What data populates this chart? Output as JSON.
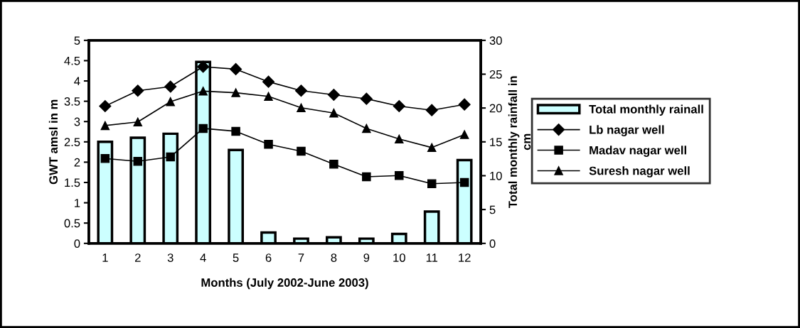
{
  "chart_data": {
    "type": "line",
    "xlabel": "Months (July 2002-June 2003)",
    "ylabel": "GWT amsl in m",
    "y2label": "Total monthly rainfall in\ncm",
    "categories": [
      "1",
      "2",
      "3",
      "4",
      "5",
      "6",
      "7",
      "8",
      "9",
      "10",
      "11",
      "12"
    ],
    "ylim": [
      0,
      5
    ],
    "yticks": [
      0,
      0.5,
      1,
      1.5,
      2,
      2.5,
      3,
      3.5,
      4,
      4.5,
      5
    ],
    "y2lim": [
      0,
      30
    ],
    "y2ticks": [
      0,
      5,
      10,
      15,
      20,
      25,
      30
    ],
    "grid": false,
    "legend": "right",
    "series": [
      {
        "name": "Total monthly rainall",
        "type": "bar",
        "axis": "y2",
        "color": "#ccffff",
        "values": [
          15.0,
          15.6,
          16.2,
          26.8,
          13.8,
          1.6,
          0.7,
          0.9,
          0.7,
          1.4,
          4.7,
          12.3
        ]
      },
      {
        "name": "Lb nagar well",
        "marker": "diamond",
        "color": "#000000",
        "values": [
          3.38,
          3.76,
          3.86,
          4.35,
          4.29,
          3.98,
          3.76,
          3.66,
          3.56,
          3.38,
          3.28,
          3.42
        ]
      },
      {
        "name": "Madav nagar well",
        "marker": "square",
        "color": "#000000",
        "values": [
          2.09,
          2.02,
          2.13,
          2.83,
          2.76,
          2.44,
          2.27,
          1.95,
          1.64,
          1.67,
          1.47,
          1.5
        ]
      },
      {
        "name": "Suresh nagar well",
        "marker": "triangle",
        "color": "#000000",
        "values": [
          2.9,
          2.99,
          3.49,
          3.75,
          3.71,
          3.62,
          3.34,
          3.21,
          2.83,
          2.57,
          2.36,
          2.68
        ]
      }
    ]
  }
}
